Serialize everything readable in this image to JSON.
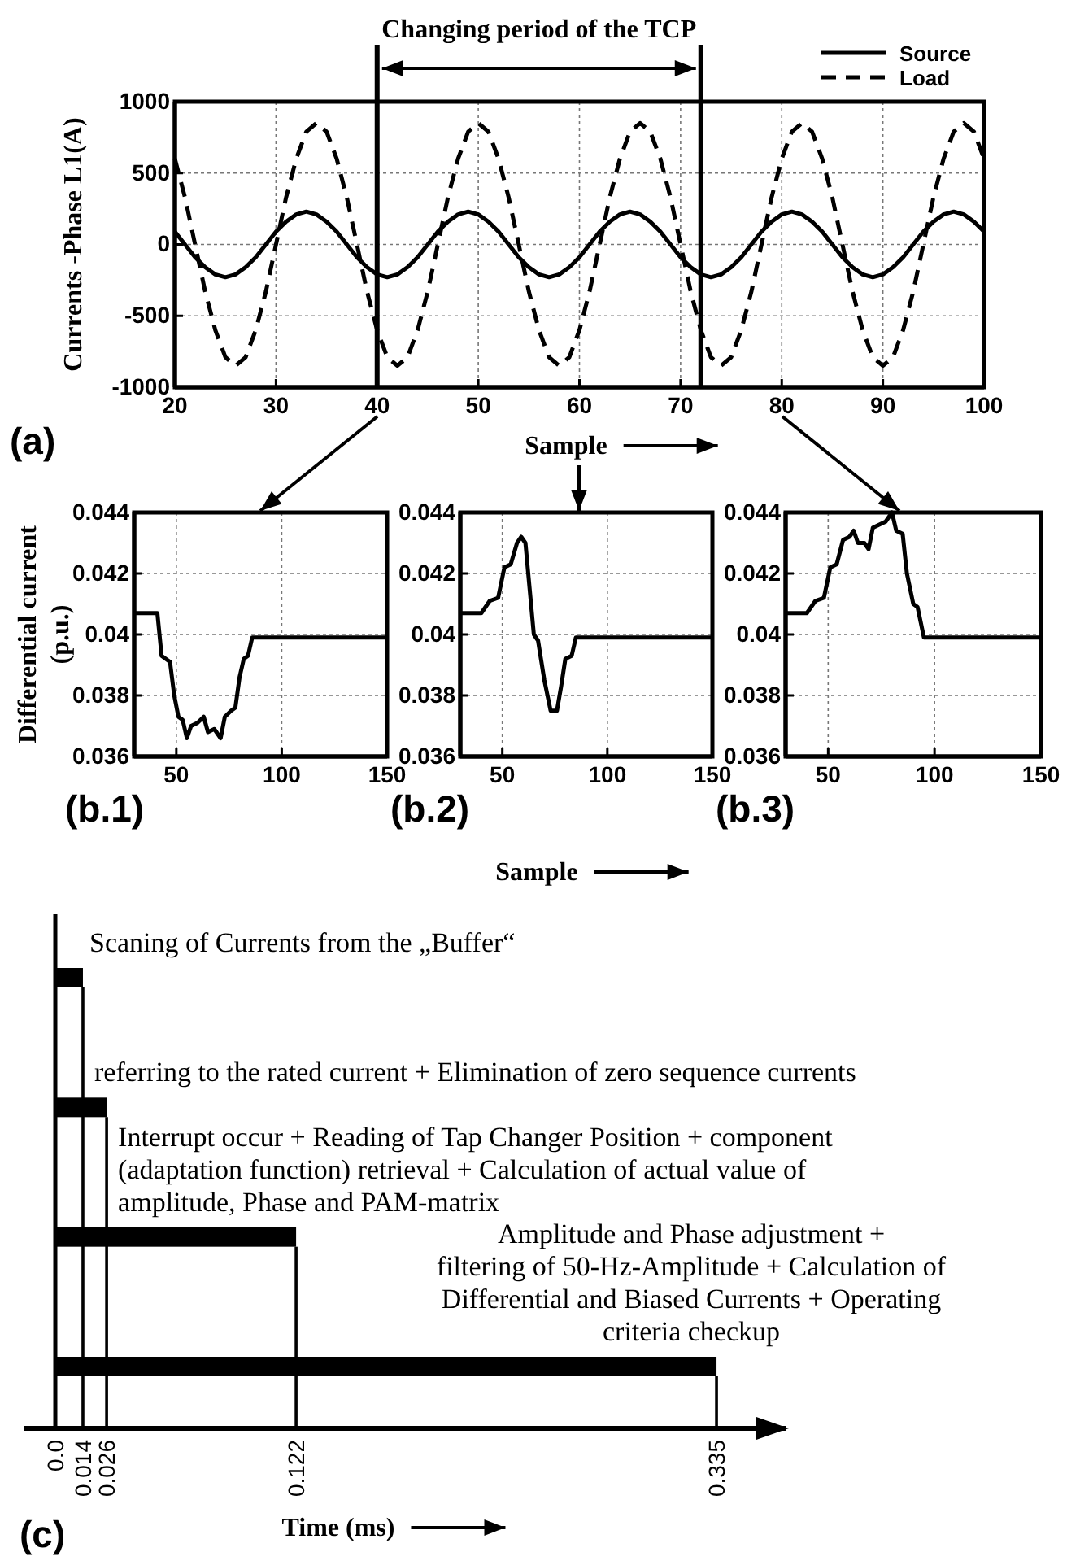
{
  "chart_data": [
    {
      "type": "line",
      "xlabel": "Sample",
      "ylabel": "Currents -Phase L1(A)",
      "x": [
        20,
        21,
        22,
        23,
        24,
        25,
        26,
        27,
        28,
        29,
        30,
        31,
        32,
        33,
        34,
        35,
        36,
        37,
        38,
        39,
        40,
        41,
        42,
        43,
        44,
        45,
        46,
        47,
        48,
        49,
        50,
        51,
        52,
        53,
        54,
        55,
        56,
        57,
        58,
        59,
        60,
        61,
        62,
        63,
        64,
        65,
        66,
        67,
        68,
        69,
        70,
        71,
        72,
        73,
        74,
        75,
        76,
        77,
        78,
        79,
        80,
        81,
        82,
        83,
        84,
        85,
        86,
        87,
        88,
        89,
        90,
        91,
        92,
        93,
        94,
        95,
        96,
        97,
        98,
        99,
        100
      ],
      "series": [
        {
          "name": "Source",
          "color": "#000000",
          "line_style": "solid",
          "values": [
            90,
            0,
            -90,
            -160,
            -210,
            -230,
            -210,
            -160,
            -90,
            0,
            90,
            160,
            210,
            230,
            210,
            160,
            90,
            0,
            -90,
            -160,
            -210,
            -230,
            -210,
            -160,
            -90,
            0,
            90,
            160,
            210,
            230,
            210,
            160,
            90,
            0,
            -90,
            -160,
            -210,
            -230,
            -210,
            -160,
            -90,
            0,
            90,
            160,
            210,
            230,
            210,
            160,
            90,
            0,
            -90,
            -160,
            -210,
            -230,
            -210,
            -160,
            -90,
            0,
            90,
            160,
            210,
            230,
            210,
            160,
            90,
            0,
            -90,
            -160,
            -210,
            -230,
            -210,
            -160,
            -90,
            0,
            90,
            160,
            210,
            230,
            210,
            160,
            90
          ]
        },
        {
          "name": "Load",
          "color": "#000000",
          "line_style": "dashed",
          "values": [
            600,
            330,
            0,
            -330,
            -600,
            -790,
            -850,
            -790,
            -600,
            -330,
            0,
            330,
            600,
            790,
            850,
            790,
            600,
            330,
            0,
            -330,
            -600,
            -790,
            -850,
            -790,
            -600,
            -330,
            0,
            330,
            600,
            790,
            850,
            790,
            600,
            330,
            0,
            -330,
            -600,
            -790,
            -850,
            -790,
            -600,
            -330,
            0,
            330,
            600,
            790,
            850,
            790,
            600,
            330,
            0,
            -330,
            -600,
            -790,
            -850,
            -790,
            -600,
            -330,
            0,
            330,
            600,
            790,
            850,
            790,
            600,
            330,
            0,
            -330,
            -600,
            -790,
            -850,
            -790,
            -600,
            -330,
            0,
            330,
            600,
            790,
            850,
            790,
            600
          ]
        }
      ],
      "xlim": [
        20,
        100
      ],
      "xticks": [
        20,
        30,
        40,
        50,
        60,
        70,
        80,
        90,
        100
      ],
      "ylim": [
        -1000,
        1000
      ],
      "yticks": [
        -1000,
        -500,
        0,
        500,
        1000
      ],
      "grid": true,
      "legend": "top right",
      "ref_lines": [
        {
          "axis": "x",
          "value": 40
        },
        {
          "axis": "x",
          "value": 72
        }
      ],
      "annotations": [
        "Changing period of the TCP",
        "(a)"
      ]
    },
    {
      "type": "line",
      "ylabel": "Differential current\n(p.u.)",
      "color": "#000000",
      "x": [
        30,
        41,
        43,
        45,
        47,
        49,
        51,
        53,
        55,
        57,
        60,
        63,
        65,
        68,
        71,
        73,
        76,
        78,
        80,
        82,
        84,
        86,
        150
      ],
      "values": [
        0.0407,
        0.0407,
        0.0393,
        0.0392,
        0.0391,
        0.038,
        0.0373,
        0.0372,
        0.0366,
        0.037,
        0.0371,
        0.0373,
        0.0368,
        0.0369,
        0.0366,
        0.0373,
        0.0375,
        0.0376,
        0.0386,
        0.0392,
        0.0393,
        0.0399,
        0.0399
      ],
      "xlim": [
        30,
        150
      ],
      "xticks": [
        50,
        100,
        150
      ],
      "ylim": [
        0.036,
        0.044
      ],
      "yticks": [
        0.036,
        0.038,
        0.04,
        0.042,
        0.044
      ],
      "grid": true,
      "annotations": [
        "(b.1)"
      ]
    },
    {
      "type": "line",
      "xlabel": "Sample",
      "color": "#000000",
      "x": [
        30,
        40,
        44,
        48,
        51,
        54,
        57,
        59,
        61,
        63,
        65,
        67,
        70,
        73,
        76,
        78,
        80,
        83,
        85,
        150
      ],
      "values": [
        0.0407,
        0.0407,
        0.0411,
        0.0412,
        0.0422,
        0.0423,
        0.043,
        0.0432,
        0.043,
        0.0415,
        0.04,
        0.0398,
        0.0385,
        0.0375,
        0.0375,
        0.0383,
        0.0392,
        0.0393,
        0.0399,
        0.0399
      ],
      "xlim": [
        30,
        150
      ],
      "xticks": [
        50,
        100,
        150
      ],
      "ylim": [
        0.036,
        0.044
      ],
      "yticks": [
        0.036,
        0.038,
        0.04,
        0.042,
        0.044
      ],
      "grid": true,
      "annotations": [
        "(b.2)"
      ]
    },
    {
      "type": "line",
      "color": "#000000",
      "x": [
        30,
        40,
        44,
        48,
        51,
        54,
        57,
        60,
        62,
        64,
        67,
        69,
        71,
        74,
        77,
        80,
        82,
        85,
        87,
        90,
        92,
        95,
        150
      ],
      "values": [
        0.0407,
        0.0407,
        0.0411,
        0.0412,
        0.0422,
        0.0423,
        0.0431,
        0.0432,
        0.0434,
        0.043,
        0.043,
        0.0428,
        0.0435,
        0.0436,
        0.0437,
        0.044,
        0.0434,
        0.0433,
        0.042,
        0.041,
        0.0409,
        0.0399,
        0.0399
      ],
      "xlim": [
        30,
        150
      ],
      "xticks": [
        50,
        100,
        150
      ],
      "ylim": [
        0.036,
        0.044
      ],
      "yticks": [
        0.036,
        0.038,
        0.04,
        0.042,
        0.044
      ],
      "grid": true,
      "annotations": [
        "(b.3)"
      ]
    },
    {
      "type": "bar",
      "orientation": "horizontal",
      "xlabel": "Time (ms)",
      "color": "#000000",
      "categories": [
        null,
        null,
        null,
        null
      ],
      "values": [
        0.014,
        0.026,
        0.122,
        0.335
      ],
      "xlim": [
        0,
        0.37
      ],
      "xticks": [
        {
          "value": 0,
          "label": "0.0"
        },
        0.014,
        0.026,
        0.122,
        0.335
      ],
      "ref_lines": [
        {
          "axis": "x",
          "value": 0.014
        },
        {
          "axis": "x",
          "value": 0.026
        },
        {
          "axis": "x",
          "value": 0.122
        },
        {
          "axis": "x",
          "value": 0.335
        }
      ],
      "annotations": [
        "Scaning of Currents from the „Buffer“",
        "referring to the rated current + Elimination of zero sequence currents",
        "Interrupt occur + Reading of Tap Changer Position + component\n(adaptation function) retrieval + Calculation of actual value of\namplitude, Phase and PAM-matrix",
        "Amplitude and Phase adjustment +\nfiltering of 50-Hz-Amplitude + Calculation of\nDifferential and Biased Currents + Operating\ncriteria checkup",
        "(c)"
      ]
    }
  ]
}
